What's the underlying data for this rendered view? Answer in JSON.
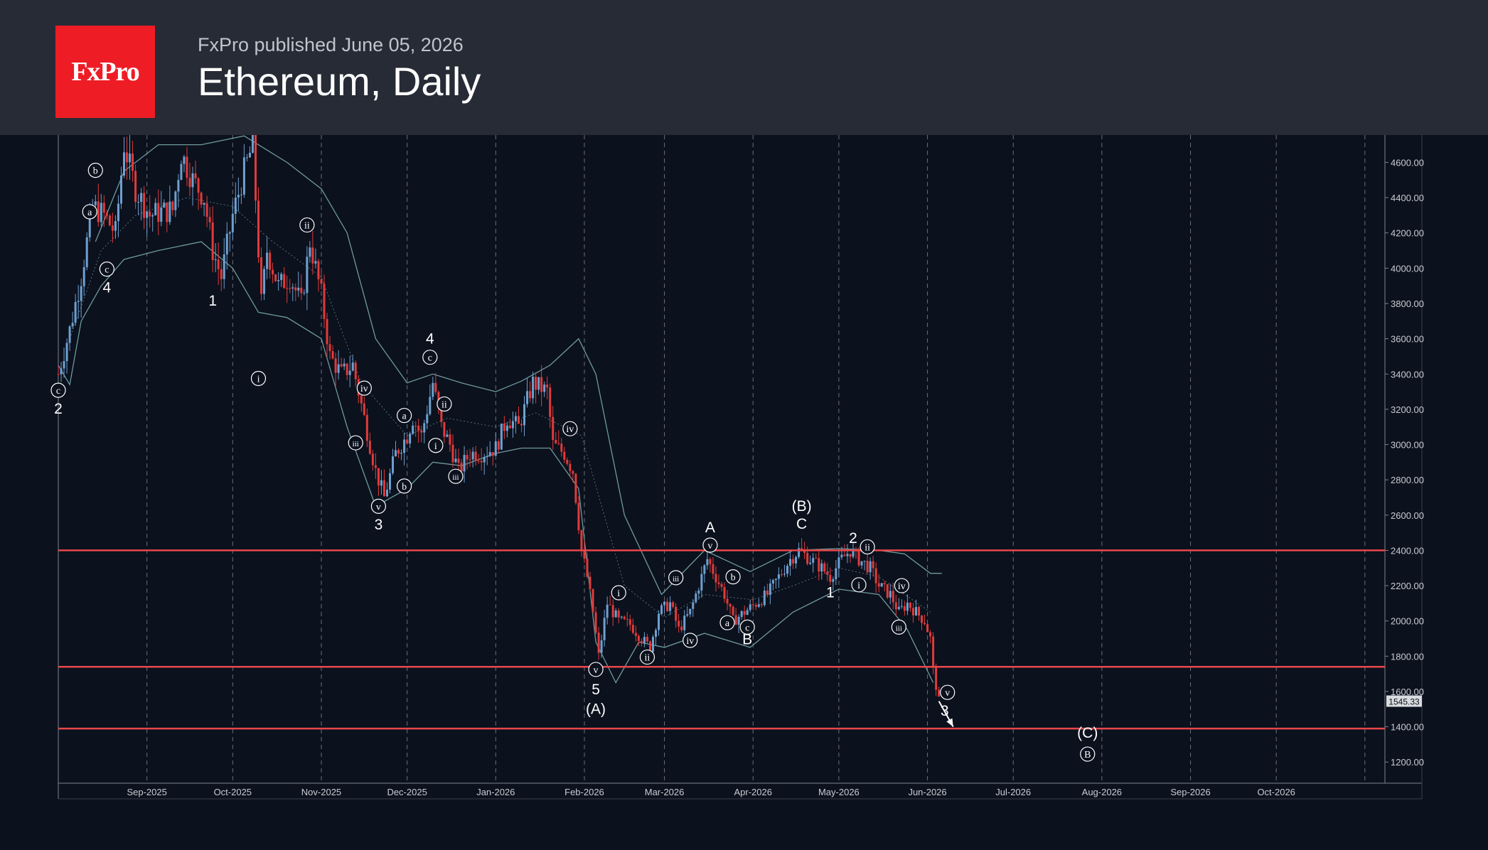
{
  "header": {
    "logo_text": "FxPro",
    "published": "FxPro published June 05, 2026",
    "title": "Ethereum, Daily"
  },
  "colors": {
    "header_bg": "#272b35",
    "plot_bg": "#0b111d",
    "logo_bg": "#ee1c25",
    "up_candle": "#6fa0d0",
    "down_candle": "#e03b3b",
    "support_resistance_line": "#e8474a",
    "bollinger_band": "#6f9a9e",
    "grid": "#8a8f99",
    "text": "#ffffff"
  },
  "chart_data": {
    "type": "candlestick",
    "symbol": "Ethereum",
    "timeframe": "Daily",
    "title": "Ethereum, Daily",
    "xlim": [
      "2025-08-01",
      "2026-11-08"
    ],
    "ylim": [
      1080,
      4755
    ],
    "y_ticks": [
      1200,
      1400,
      1600,
      1800,
      2000,
      2200,
      2400,
      2600,
      2800,
      3000,
      3200,
      3400,
      3600,
      3800,
      4000,
      4200,
      4400,
      4600
    ],
    "x_ticks": [
      {
        "date": "2025-09-01",
        "label": "Sep-2025"
      },
      {
        "date": "2025-10-01",
        "label": "Oct-2025"
      },
      {
        "date": "2025-11-01",
        "label": "Nov-2025"
      },
      {
        "date": "2025-12-01",
        "label": "Dec-2025"
      },
      {
        "date": "2026-01-01",
        "label": "Jan-2026"
      },
      {
        "date": "2026-02-01",
        "label": "Feb-2026"
      },
      {
        "date": "2026-03-01",
        "label": "Mar-2026"
      },
      {
        "date": "2026-04-01",
        "label": "Apr-2026"
      },
      {
        "date": "2026-05-01",
        "label": "May-2026"
      },
      {
        "date": "2026-06-01",
        "label": "Jun-2026"
      },
      {
        "date": "2026-07-01",
        "label": "Jul-2026"
      },
      {
        "date": "2026-08-01",
        "label": "Aug-2026"
      },
      {
        "date": "2026-09-01",
        "label": "Sep-2026"
      },
      {
        "date": "2026-10-01",
        "label": "Oct-2026"
      }
    ],
    "current_price": 1545.33,
    "current_price_label": "1545.33",
    "horizontal_levels": [
      2400,
      1740,
      1390
    ],
    "price_path": [
      [
        "2025-08-01",
        3400
      ],
      [
        "2025-08-05",
        3650
      ],
      [
        "2025-08-09",
        3950
      ],
      [
        "2025-08-13",
        4350
      ],
      [
        "2025-08-17",
        4300
      ],
      [
        "2025-08-21",
        4200
      ],
      [
        "2025-08-24",
        4700
      ],
      [
        "2025-08-28",
        4450
      ],
      [
        "2025-09-02",
        4300
      ],
      [
        "2025-09-06",
        4320
      ],
      [
        "2025-09-10",
        4330
      ],
      [
        "2025-09-13",
        4650
      ],
      [
        "2025-09-17",
        4500
      ],
      [
        "2025-09-21",
        4400
      ],
      [
        "2025-09-24",
        4100
      ],
      [
        "2025-09-27",
        3950
      ],
      [
        "2025-10-01",
        4300
      ],
      [
        "2025-10-05",
        4550
      ],
      [
        "2025-10-08",
        4700
      ],
      [
        "2025-10-11",
        3800
      ],
      [
        "2025-10-13",
        4100
      ],
      [
        "2025-10-17",
        3900
      ],
      [
        "2025-10-21",
        3950
      ],
      [
        "2025-10-25",
        3800
      ],
      [
        "2025-10-28",
        4150
      ],
      [
        "2025-11-01",
        3850
      ],
      [
        "2025-11-04",
        3500
      ],
      [
        "2025-11-08",
        3400
      ],
      [
        "2025-11-12",
        3450
      ],
      [
        "2025-11-16",
        3150
      ],
      [
        "2025-11-20",
        2850
      ],
      [
        "2025-11-23",
        2700
      ],
      [
        "2025-11-27",
        2950
      ],
      [
        "2025-12-01",
        3050
      ],
      [
        "2025-12-03",
        3150
      ],
      [
        "2025-12-06",
        3050
      ],
      [
        "2025-12-10",
        3350
      ],
      [
        "2025-12-13",
        3100
      ],
      [
        "2025-12-16",
        3000
      ],
      [
        "2025-12-19",
        2850
      ],
      [
        "2025-12-23",
        2950
      ],
      [
        "2025-12-27",
        2950
      ],
      [
        "2026-01-01",
        2980
      ],
      [
        "2026-01-05",
        3150
      ],
      [
        "2026-01-09",
        3100
      ],
      [
        "2026-01-14",
        3350
      ],
      [
        "2026-01-19",
        3300
      ],
      [
        "2026-01-21",
        3000
      ],
      [
        "2026-01-25",
        2950
      ],
      [
        "2026-01-28",
        2850
      ],
      [
        "2026-01-31",
        2400
      ],
      [
        "2026-02-02",
        2250
      ],
      [
        "2026-02-04",
        2050
      ],
      [
        "2026-02-06",
        1800
      ],
      [
        "2026-02-09",
        2100
      ],
      [
        "2026-02-13",
        2000
      ],
      [
        "2026-02-17",
        1980
      ],
      [
        "2026-02-21",
        1900
      ],
      [
        "2026-02-24",
        1850
      ],
      [
        "2026-02-27",
        2050
      ],
      [
        "2026-03-03",
        2100
      ],
      [
        "2026-03-06",
        1950
      ],
      [
        "2026-03-10",
        2050
      ],
      [
        "2026-03-13",
        2200
      ],
      [
        "2026-03-16",
        2350
      ],
      [
        "2026-03-19",
        2250
      ],
      [
        "2026-03-22",
        2150
      ],
      [
        "2026-03-25",
        2000
      ],
      [
        "2026-03-29",
        2050
      ],
      [
        "2026-04-02",
        2100
      ],
      [
        "2026-04-06",
        2150
      ],
      [
        "2026-04-10",
        2250
      ],
      [
        "2026-04-14",
        2350
      ],
      [
        "2026-04-17",
        2400
      ],
      [
        "2026-04-21",
        2350
      ],
      [
        "2026-04-25",
        2300
      ],
      [
        "2026-04-28",
        2250
      ],
      [
        "2026-05-02",
        2350
      ],
      [
        "2026-05-05",
        2400
      ],
      [
        "2026-05-08",
        2350
      ],
      [
        "2026-05-12",
        2300
      ],
      [
        "2026-05-15",
        2200
      ],
      [
        "2026-05-19",
        2150
      ],
      [
        "2026-05-22",
        2050
      ],
      [
        "2026-05-25",
        2100
      ],
      [
        "2026-05-28",
        2050
      ],
      [
        "2026-05-31",
        2000
      ],
      [
        "2026-06-02",
        1900
      ],
      [
        "2026-06-03",
        1720
      ],
      [
        "2026-06-05",
        1545
      ]
    ],
    "bollinger_bands": {
      "upper": [
        [
          "2025-08-14",
          4150
        ],
        [
          "2025-08-24",
          4550
        ],
        [
          "2025-09-05",
          4700
        ],
        [
          "2025-09-20",
          4700
        ],
        [
          "2025-10-05",
          4750
        ],
        [
          "2025-10-20",
          4600
        ],
        [
          "2025-11-01",
          4450
        ],
        [
          "2025-11-10",
          4200
        ],
        [
          "2025-11-20",
          3600
        ],
        [
          "2025-12-01",
          3350
        ],
        [
          "2025-12-10",
          3400
        ],
        [
          "2025-12-20",
          3350
        ],
        [
          "2026-01-01",
          3300
        ],
        [
          "2026-01-10",
          3360
        ],
        [
          "2026-01-20",
          3450
        ],
        [
          "2026-01-30",
          3600
        ],
        [
          "2026-02-05",
          3400
        ],
        [
          "2026-02-15",
          2600
        ],
        [
          "2026-02-28",
          2150
        ],
        [
          "2026-03-15",
          2400
        ],
        [
          "2026-03-31",
          2280
        ],
        [
          "2026-04-15",
          2400
        ],
        [
          "2026-05-01",
          2410
        ],
        [
          "2026-05-15",
          2400
        ],
        [
          "2026-05-24",
          2380
        ],
        [
          "2026-06-02",
          2270
        ],
        [
          "2026-06-06",
          2270
        ]
      ],
      "lower": [
        [
          "2025-08-01",
          3450
        ],
        [
          "2025-08-05",
          3340
        ],
        [
          "2025-08-09",
          3700
        ],
        [
          "2025-08-16",
          3900
        ],
        [
          "2025-08-24",
          4050
        ],
        [
          "2025-09-05",
          4100
        ],
        [
          "2025-09-20",
          4150
        ],
        [
          "2025-10-01",
          4000
        ],
        [
          "2025-10-10",
          3750
        ],
        [
          "2025-10-20",
          3720
        ],
        [
          "2025-11-01",
          3600
        ],
        [
          "2025-11-10",
          3100
        ],
        [
          "2025-11-20",
          2650
        ],
        [
          "2025-12-01",
          2750
        ],
        [
          "2025-12-10",
          2900
        ],
        [
          "2025-12-20",
          2880
        ],
        [
          "2026-01-01",
          2950
        ],
        [
          "2026-01-10",
          2980
        ],
        [
          "2026-01-20",
          2980
        ],
        [
          "2026-01-30",
          2750
        ],
        [
          "2026-02-05",
          1880
        ],
        [
          "2026-02-12",
          1650
        ],
        [
          "2026-02-20",
          1880
        ],
        [
          "2026-03-01",
          1850
        ],
        [
          "2026-03-15",
          1930
        ],
        [
          "2026-03-31",
          1850
        ],
        [
          "2026-04-15",
          2050
        ],
        [
          "2026-05-01",
          2180
        ],
        [
          "2026-05-15",
          2150
        ],
        [
          "2026-05-25",
          1950
        ],
        [
          "2026-06-03",
          1650
        ]
      ],
      "middle": [
        [
          "2025-08-05",
          3600
        ],
        [
          "2025-08-16",
          4100
        ],
        [
          "2025-08-28",
          4300
        ],
        [
          "2025-09-15",
          4400
        ],
        [
          "2025-10-01",
          4350
        ],
        [
          "2025-10-15",
          4150
        ],
        [
          "2025-11-01",
          3950
        ],
        [
          "2025-11-15",
          3350
        ],
        [
          "2025-12-01",
          3050
        ],
        [
          "2025-12-15",
          3150
        ],
        [
          "2026-01-01",
          3100
        ],
        [
          "2026-01-15",
          3180
        ],
        [
          "2026-01-31",
          3050
        ],
        [
          "2026-02-15",
          2200
        ],
        [
          "2026-03-01",
          2020
        ],
        [
          "2026-03-15",
          2150
        ],
        [
          "2026-04-01",
          2120
        ],
        [
          "2026-04-15",
          2200
        ],
        [
          "2026-05-01",
          2300
        ],
        [
          "2026-05-15",
          2250
        ],
        [
          "2026-06-02",
          2050
        ]
      ]
    },
    "labels": [
      {
        "text": "b",
        "date": "2025-08-14",
        "price": 4555,
        "circled": true
      },
      {
        "text": "a",
        "date": "2025-08-12",
        "price": 4320,
        "circled": true
      },
      {
        "text": "c",
        "date": "2025-08-18",
        "price": 3995,
        "circled": true
      },
      {
        "text": "4",
        "date": "2025-08-18",
        "price": 3895,
        "circled": false
      },
      {
        "text": "c",
        "date": "2025-08-01",
        "price": 3308,
        "circled": true
      },
      {
        "text": "2",
        "date": "2025-08-01",
        "price": 3208,
        "circled": false
      },
      {
        "text": "1",
        "date": "2025-09-24",
        "price": 3820,
        "circled": false
      },
      {
        "text": "ii",
        "date": "2025-10-27",
        "price": 4245,
        "circled": true
      },
      {
        "text": "i",
        "date": "2025-10-10",
        "price": 3375,
        "circled": true
      },
      {
        "text": "4",
        "date": "2025-12-09",
        "price": 3605,
        "circled": false
      },
      {
        "text": "c",
        "date": "2025-12-09",
        "price": 3495,
        "circled": true
      },
      {
        "text": "ii",
        "date": "2025-12-14",
        "price": 3230,
        "circled": true
      },
      {
        "text": "iv",
        "date": "2025-11-16",
        "price": 3320,
        "circled": true
      },
      {
        "text": "a",
        "date": "2025-11-30",
        "price": 3165,
        "circled": true
      },
      {
        "text": "iii",
        "date": "2025-11-13",
        "price": 3010,
        "circled": true
      },
      {
        "text": "i",
        "date": "2025-12-11",
        "price": 2995,
        "circled": true
      },
      {
        "text": "iii",
        "date": "2025-12-18",
        "price": 2820,
        "circled": true
      },
      {
        "text": "b",
        "date": "2025-11-30",
        "price": 2765,
        "circled": true
      },
      {
        "text": "v",
        "date": "2025-11-21",
        "price": 2650,
        "circled": true
      },
      {
        "text": "3",
        "date": "2025-11-21",
        "price": 2550,
        "circled": false
      },
      {
        "text": "iv",
        "date": "2026-01-27",
        "price": 3090,
        "circled": true
      },
      {
        "text": "v",
        "date": "2026-02-05",
        "price": 1725,
        "circled": true
      },
      {
        "text": "5",
        "date": "2026-02-05",
        "price": 1615,
        "circled": false
      },
      {
        "text": "(A)",
        "date": "2026-02-05",
        "price": 1505,
        "circled": false
      },
      {
        "text": "i",
        "date": "2026-02-13",
        "price": 2160,
        "circled": true
      },
      {
        "text": "ii",
        "date": "2026-02-23",
        "price": 1795,
        "circled": true
      },
      {
        "text": "iii",
        "date": "2026-03-05",
        "price": 2245,
        "circled": true
      },
      {
        "text": "iv",
        "date": "2026-03-10",
        "price": 1890,
        "circled": true
      },
      {
        "text": "A",
        "date": "2026-03-17",
        "price": 2535,
        "circled": false
      },
      {
        "text": "v",
        "date": "2026-03-17",
        "price": 2430,
        "circled": true
      },
      {
        "text": "b",
        "date": "2026-03-25",
        "price": 2250,
        "circled": true
      },
      {
        "text": "a",
        "date": "2026-03-23",
        "price": 1990,
        "circled": true
      },
      {
        "text": "c",
        "date": "2026-03-30",
        "price": 1965,
        "circled": true
      },
      {
        "text": "B",
        "date": "2026-03-30",
        "price": 1900,
        "circled": false
      },
      {
        "text": "(B)",
        "date": "2026-04-18",
        "price": 2655,
        "circled": false
      },
      {
        "text": "C",
        "date": "2026-04-18",
        "price": 2555,
        "circled": false
      },
      {
        "text": "2",
        "date": "2026-05-06",
        "price": 2475,
        "circled": false
      },
      {
        "text": "ii",
        "date": "2026-05-11",
        "price": 2420,
        "circled": true
      },
      {
        "text": "1",
        "date": "2026-04-28",
        "price": 2165,
        "circled": false
      },
      {
        "text": "i",
        "date": "2026-05-08",
        "price": 2205,
        "circled": true
      },
      {
        "text": "iv",
        "date": "2026-05-23",
        "price": 2200,
        "circled": true
      },
      {
        "text": "iii",
        "date": "2026-05-22",
        "price": 1965,
        "circled": true
      },
      {
        "text": "v",
        "date": "2026-06-08",
        "price": 1595,
        "circled": true
      },
      {
        "text": "3",
        "date": "2026-06-07",
        "price": 1495,
        "circled": false
      },
      {
        "text": "(C)",
        "date": "2026-07-27",
        "price": 1370,
        "circled": false
      },
      {
        "text": "B",
        "date": "2026-07-27",
        "price": 1245,
        "circled": true
      }
    ],
    "projection_arrow": {
      "from": [
        "2026-06-05",
        1545
      ],
      "to": [
        "2026-06-10",
        1400
      ]
    },
    "grid": {
      "vertical_dashed": true,
      "horizontal": false
    },
    "legend": "none"
  }
}
